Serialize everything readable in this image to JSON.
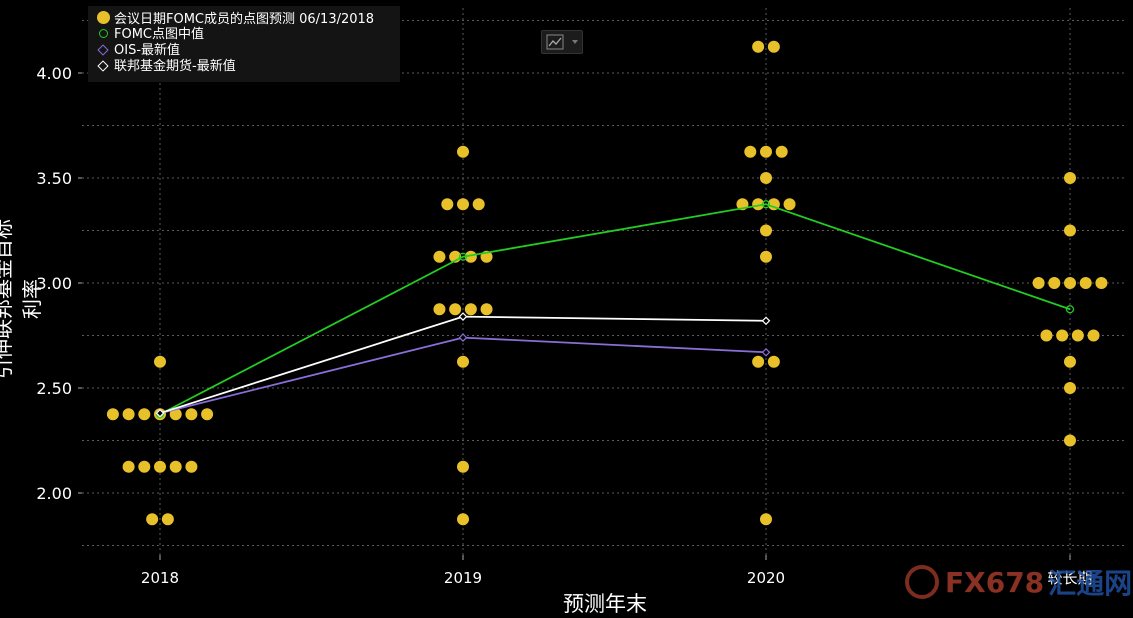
{
  "chart_data": {
    "type": "scatter",
    "xlabel": "预测年末",
    "ylabel": "引伸联邦基金目标利率",
    "categories": [
      "2018",
      "2019",
      "2020",
      "较长期"
    ],
    "ylim": [
      1.75,
      4.25
    ],
    "yticks": [
      "2.00",
      "2.50",
      "3.00",
      "3.50",
      "4.00"
    ],
    "grid": true,
    "legend_position": "top-left",
    "series": [
      {
        "name": "会议日期FOMC成员的点图预测 06/13/2018",
        "kind": "dots",
        "color": "#e8c12a",
        "points": [
          {
            "category": "2018",
            "values": [
              1.875,
              1.875,
              2.125,
              2.125,
              2.125,
              2.125,
              2.125,
              2.375,
              2.375,
              2.375,
              2.375,
              2.375,
              2.375,
              2.375,
              2.625
            ]
          },
          {
            "category": "2019",
            "values": [
              1.875,
              2.125,
              2.625,
              2.875,
              2.875,
              2.875,
              2.875,
              3.125,
              3.125,
              3.125,
              3.125,
              3.375,
              3.375,
              3.375,
              3.625
            ]
          },
          {
            "category": "2020",
            "values": [
              1.875,
              2.625,
              2.625,
              3.125,
              3.25,
              3.375,
              3.375,
              3.375,
              3.375,
              3.5,
              3.625,
              3.625,
              3.625,
              4.125,
              4.125
            ]
          },
          {
            "category": "较长期",
            "values": [
              2.25,
              2.5,
              2.625,
              2.75,
              2.75,
              2.75,
              2.75,
              3.0,
              3.0,
              3.0,
              3.0,
              3.0,
              3.25,
              3.5
            ]
          }
        ]
      },
      {
        "name": "FOMC点图中值",
        "kind": "line-ring",
        "color": "#22cc22",
        "values": [
          2.375,
          3.125,
          3.375,
          2.875
        ]
      },
      {
        "name": "OIS-最新值",
        "kind": "line-diamond",
        "color": "#8a6ed8",
        "values": [
          2.38,
          2.74,
          2.67,
          null
        ]
      },
      {
        "name": "联邦基金期货-最新值",
        "kind": "line-diamond",
        "color": "#ffffff",
        "values": [
          2.38,
          2.84,
          2.82,
          null
        ]
      }
    ]
  },
  "watermark": {
    "text": "FX678",
    "suffix": "汇通网"
  }
}
